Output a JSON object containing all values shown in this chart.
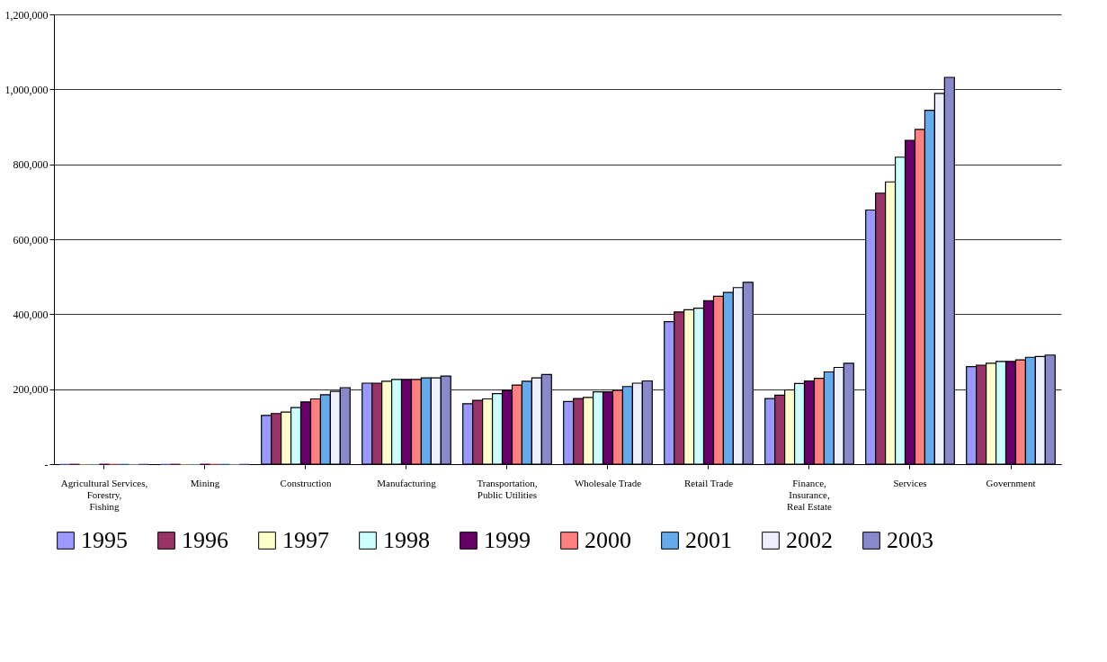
{
  "chart_data": {
    "type": "bar",
    "categories": [
      "Agricultural Services, Forestry, Fishing",
      "Mining",
      "Construction",
      "Manufacturing",
      "Transportation, Public Utilities",
      "Wholesale Trade",
      "Retail Trade",
      "Finance, Insurance, Real Estate",
      "Services",
      "Government"
    ],
    "series": [
      {
        "name": "1995",
        "color": "#9999ff",
        "values": [
          0,
          0,
          130000,
          216000,
          161000,
          167000,
          380000,
          175000,
          678000,
          260000
        ]
      },
      {
        "name": "1996",
        "color": "#993366",
        "values": [
          0,
          0,
          135000,
          216000,
          170000,
          175000,
          406000,
          184000,
          723000,
          264000
        ]
      },
      {
        "name": "1997",
        "color": "#ffffcc",
        "values": [
          0,
          0,
          139000,
          221000,
          174000,
          178000,
          412000,
          198000,
          753000,
          269000
        ]
      },
      {
        "name": "1998",
        "color": "#ccffff",
        "values": [
          0,
          0,
          151000,
          226000,
          188000,
          193000,
          416000,
          215000,
          819000,
          274000
        ]
      },
      {
        "name": "1999",
        "color": "#660066",
        "values": [
          0,
          0,
          166000,
          226000,
          197000,
          193000,
          436000,
          222000,
          864000,
          274000
        ]
      },
      {
        "name": "2000",
        "color": "#ff8080",
        "values": [
          0,
          0,
          174000,
          226000,
          211000,
          197000,
          448000,
          229000,
          893000,
          278000
        ]
      },
      {
        "name": "2001",
        "color": "#66aaee",
        "values": [
          0,
          0,
          185000,
          230000,
          221000,
          207000,
          458000,
          246000,
          944000,
          285000
        ]
      },
      {
        "name": "2002",
        "color": "#eeeeff",
        "values": [
          0,
          0,
          194000,
          230000,
          230000,
          216000,
          471000,
          258000,
          989000,
          287000
        ]
      },
      {
        "name": "2003",
        "color": "#8888cc",
        "values": [
          0,
          0,
          204000,
          235000,
          239000,
          222000,
          485000,
          269000,
          1032000,
          291000
        ]
      }
    ],
    "ylim": [
      0,
      1200000
    ],
    "yticks": [
      {
        "value": 0,
        "label": "-"
      },
      {
        "value": 200000,
        "label": "200,000"
      },
      {
        "value": 400000,
        "label": "400,000"
      },
      {
        "value": 600000,
        "label": "600,000"
      },
      {
        "value": 800000,
        "label": "800,000"
      },
      {
        "value": 1000000,
        "label": "1,000,000"
      },
      {
        "value": 1200000,
        "label": "1,200,000"
      }
    ],
    "grid": "y",
    "legend": "bottom"
  }
}
